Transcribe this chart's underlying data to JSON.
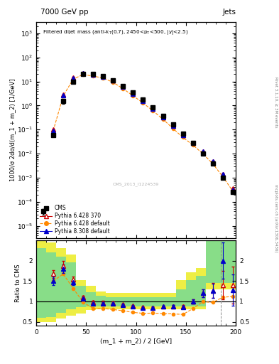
{
  "title_top": "7000 GeV pp",
  "title_right": "Jets",
  "xlabel": "(m_1 + m_2) / 2 [GeV]",
  "ylabel_main": "1000/σ 2dσ/d(m_1 + m_2) [1/GeV]",
  "ylabel_ratio": "Ratio to CMS",
  "right_label_top": "Rivet 3.1.10, ≥ 3M events",
  "right_label_bot": "mcplots.cern.ch [arXiv:1306.3436]",
  "id_label": "CMS_2013_I1224539",
  "xlim": [
    0,
    200
  ],
  "ylim_main": [
    3e-06,
    3000.0
  ],
  "ylim_ratio": [
    0.4,
    2.5
  ],
  "cms_x": [
    17,
    27,
    37,
    47,
    57,
    67,
    77,
    87,
    97,
    107,
    117,
    127,
    137,
    147,
    157,
    167,
    177,
    187,
    197
  ],
  "cms_y": [
    0.06,
    1.5,
    9.5,
    20.0,
    20.0,
    17.0,
    11.5,
    6.5,
    3.5,
    1.8,
    0.85,
    0.38,
    0.16,
    0.068,
    0.028,
    0.01,
    0.0038,
    0.001,
    0.00025
  ],
  "cms_yerr": [
    0.01,
    0.3,
    1.0,
    1.5,
    1.5,
    1.2,
    0.8,
    0.5,
    0.25,
    0.12,
    0.06,
    0.025,
    0.012,
    0.005,
    0.002,
    0.0008,
    0.0003,
    8e-05,
    2.5e-05
  ],
  "cms_x_low": [
    7
  ],
  "cms_y_low": [
    4e-05
  ],
  "cms_yerr_low": [
    1e-05
  ],
  "p6_370_x": [
    17,
    27,
    37,
    47,
    57,
    67,
    77,
    87,
    97,
    107,
    117,
    127,
    137,
    147,
    157,
    167,
    177,
    187,
    197
  ],
  "p6_370_y": [
    0.1,
    2.8,
    14.5,
    22.0,
    19.5,
    16.5,
    11.0,
    6.0,
    3.1,
    1.55,
    0.72,
    0.33,
    0.14,
    0.059,
    0.028,
    0.012,
    0.0048,
    0.0014,
    0.00035
  ],
  "p6_370_yerr": [
    0.005,
    0.15,
    0.8,
    1.2,
    1.0,
    0.9,
    0.6,
    0.3,
    0.15,
    0.08,
    0.04,
    0.018,
    0.008,
    0.004,
    0.002,
    0.0008,
    0.0003,
    0.0001,
    3e-05
  ],
  "p6_def_x": [
    17,
    27,
    37,
    47,
    57,
    67,
    77,
    87,
    97,
    107,
    117,
    127,
    137,
    147,
    157,
    167,
    177,
    187,
    197
  ],
  "p6_def_y": [
    0.09,
    2.5,
    12.5,
    19.5,
    16.6,
    14.0,
    9.2,
    5.0,
    2.55,
    1.28,
    0.6,
    0.27,
    0.112,
    0.047,
    0.023,
    0.0099,
    0.0038,
    0.0011,
    0.00028
  ],
  "p8_def_x": [
    17,
    27,
    37,
    47,
    57,
    67,
    77,
    87,
    97,
    107,
    117,
    127,
    137,
    147,
    157,
    167,
    177,
    187,
    197
  ],
  "p8_def_y": [
    0.09,
    2.7,
    14.0,
    21.5,
    19.0,
    16.0,
    10.8,
    5.9,
    3.05,
    1.52,
    0.71,
    0.32,
    0.14,
    0.058,
    0.028,
    0.012,
    0.0048,
    0.0014,
    0.00032
  ],
  "p8_def_yerr": [
    0.005,
    0.12,
    0.7,
    1.1,
    0.95,
    0.85,
    0.55,
    0.28,
    0.14,
    0.07,
    0.035,
    0.016,
    0.007,
    0.003,
    0.0015,
    0.0007,
    0.0003,
    9e-05,
    2.5e-05
  ],
  "ratio_x": [
    17,
    27,
    37,
    47,
    57,
    67,
    77,
    87,
    97,
    107,
    117,
    127,
    137,
    147,
    157,
    167,
    177,
    187,
    197
  ],
  "ratio_p6_370": [
    1.67,
    1.87,
    1.53,
    1.1,
    0.975,
    0.97,
    0.957,
    0.923,
    0.886,
    0.859,
    0.847,
    0.869,
    0.875,
    0.868,
    1.0,
    1.2,
    1.263,
    1.4,
    1.4
  ],
  "ratio_p6_370_err": [
    0.1,
    0.12,
    0.08,
    0.04,
    0.035,
    0.04,
    0.035,
    0.03,
    0.028,
    0.025,
    0.025,
    0.03,
    0.032,
    0.038,
    0.055,
    0.1,
    0.18,
    0.35,
    0.45
  ],
  "ratio_p6_def": [
    1.5,
    1.67,
    1.32,
    0.975,
    0.83,
    0.824,
    0.8,
    0.769,
    0.729,
    0.706,
    0.711,
    0.7,
    0.691,
    0.679,
    0.821,
    0.99,
    0.974,
    1.1,
    1.12
  ],
  "ratio_p8_def": [
    1.5,
    1.8,
    1.47,
    1.075,
    0.95,
    0.941,
    0.939,
    0.908,
    0.871,
    0.835,
    0.842,
    0.868,
    0.875,
    0.853,
    1.0,
    1.2,
    1.263,
    2.0,
    1.28
  ],
  "ratio_p8_def_err": [
    0.1,
    0.1,
    0.07,
    0.035,
    0.03,
    0.034,
    0.03,
    0.026,
    0.024,
    0.022,
    0.022,
    0.026,
    0.028,
    0.033,
    0.05,
    0.095,
    0.17,
    0.45,
    0.38
  ],
  "green_band_x": [
    0,
    10,
    20,
    30,
    40,
    50,
    60,
    70,
    80,
    90,
    100,
    110,
    120,
    130,
    140,
    150,
    160,
    170,
    180,
    200
  ],
  "green_band_lo": [
    0.6,
    0.62,
    0.72,
    0.8,
    0.85,
    0.88,
    0.88,
    0.88,
    0.88,
    0.88,
    0.88,
    0.88,
    0.88,
    0.88,
    0.88,
    0.88,
    0.88,
    1.45,
    1.45,
    1.45
  ],
  "green_band_hi": [
    2.3,
    2.2,
    2.1,
    1.95,
    1.38,
    1.22,
    1.14,
    1.1,
    1.1,
    1.1,
    1.1,
    1.1,
    1.1,
    1.1,
    1.3,
    1.52,
    1.62,
    2.5,
    2.5,
    2.5
  ],
  "yellow_band_x": [
    0,
    10,
    20,
    30,
    40,
    50,
    60,
    70,
    80,
    90,
    100,
    110,
    120,
    130,
    140,
    150,
    160,
    170,
    180,
    200
  ],
  "yellow_band_lo": [
    0.5,
    0.5,
    0.58,
    0.65,
    0.7,
    0.78,
    0.8,
    0.8,
    0.8,
    0.8,
    0.8,
    0.8,
    0.8,
    0.8,
    0.8,
    0.8,
    0.8,
    1.3,
    1.3,
    1.3
  ],
  "yellow_band_hi": [
    2.5,
    2.45,
    2.3,
    2.15,
    1.52,
    1.38,
    1.24,
    1.2,
    1.2,
    1.2,
    1.2,
    1.2,
    1.2,
    1.2,
    1.52,
    1.72,
    1.82,
    2.5,
    2.5,
    2.5
  ],
  "color_cms": "#000000",
  "color_p6_370": "#cc0000",
  "color_p6_def": "#ff8800",
  "color_p8": "#0000cc",
  "color_green": "#88dd88",
  "color_yellow": "#eeee44",
  "vline_x": 185
}
